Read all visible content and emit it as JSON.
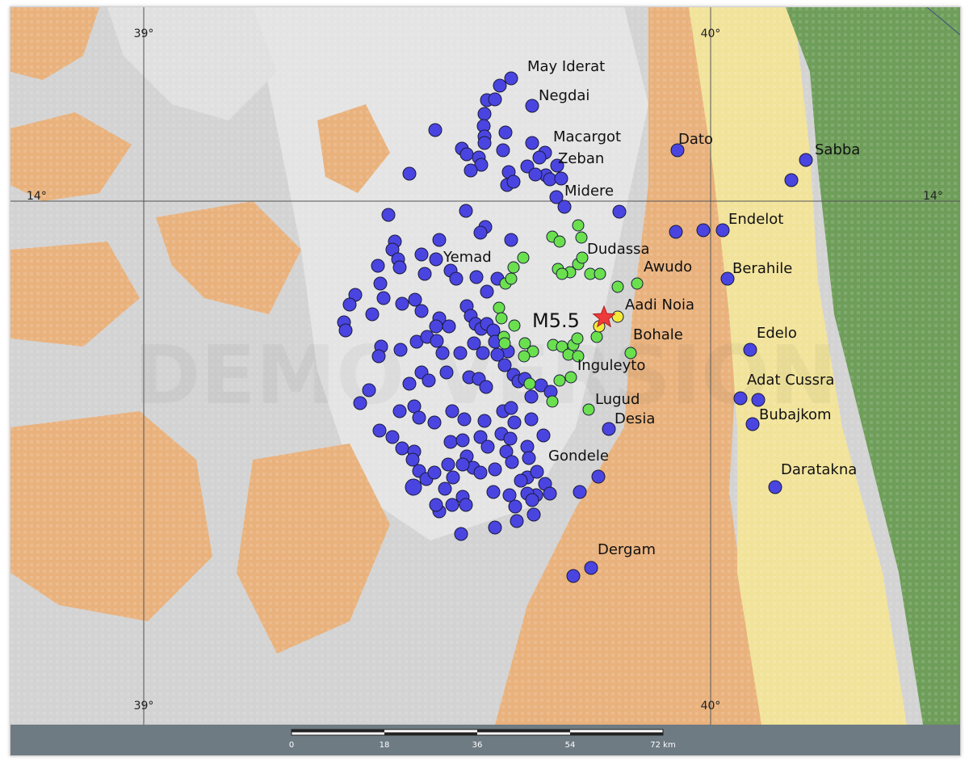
{
  "map": {
    "graticule": {
      "lon_top_left": "39°",
      "lon_top_right": "40°",
      "lon_bottom_left": "39°",
      "lon_bottom_right": "40°",
      "lat_left": "14°",
      "lat_right": "14°"
    },
    "epicenter": {
      "label": "M5.5",
      "color": "#ee3a3a"
    },
    "watermark": "DEMO VERSION",
    "colors": {
      "highland_light": "#e6e6e6",
      "highland": "#d1d1d1",
      "plateau_orange": "#e9b27d",
      "lowland_yellow": "#f1e39a",
      "lowland_green": "#6e9e5a",
      "station_blue": "#4a45e0",
      "station_green": "#6be04e",
      "station_yellow": "#f2ea3a"
    },
    "place_labels": [
      "May Iderat",
      "Negdai",
      "Macargot",
      "Zeban",
      "Dato",
      "Sabba",
      "Midere",
      "Endelot",
      "Dudassa",
      "Yemad",
      "Awudo",
      "Berahile",
      "Aadi Noia",
      "Bohale",
      "Edelo",
      "Inguleyto",
      "Adat Cussra",
      "Lugud",
      "Desia",
      "Bubajkom",
      "Gondele",
      "Daratakna",
      "Dergam"
    ]
  },
  "scale": {
    "ticks": [
      "0",
      "18",
      "36",
      "54",
      "72 km"
    ]
  }
}
